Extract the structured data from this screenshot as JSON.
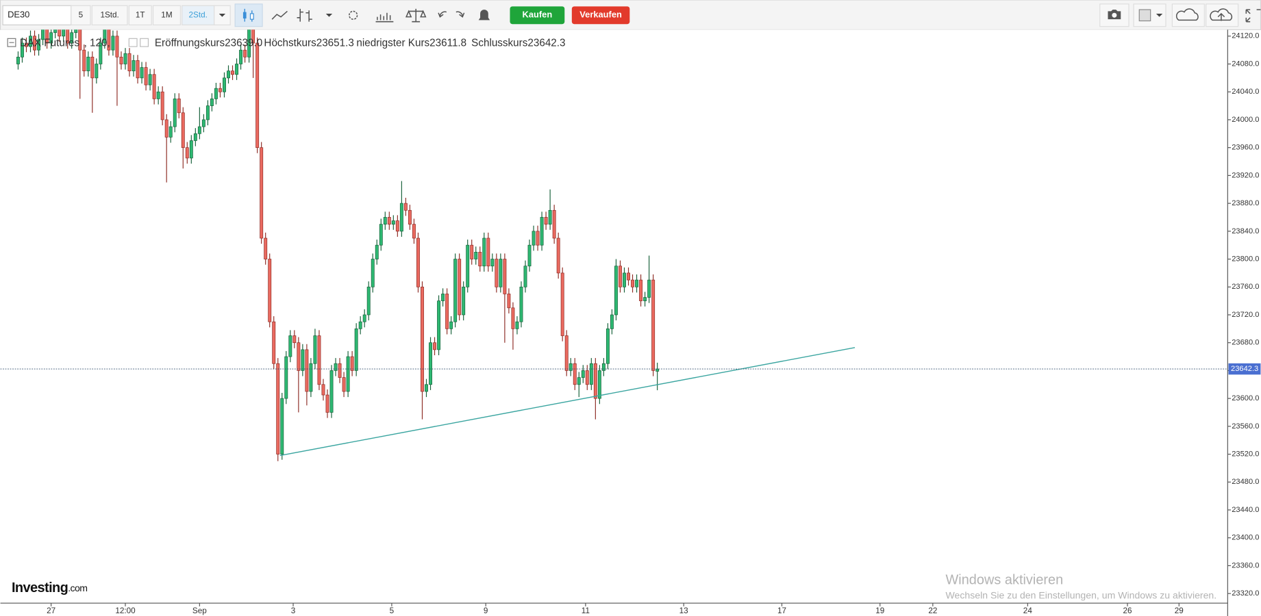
{
  "toolbar": {
    "symbol": "DE30",
    "intervals": [
      "5",
      "1Std.",
      "1T",
      "1M",
      "2Std."
    ],
    "buy": "Kaufen",
    "sell": "Verkaufen"
  },
  "logo": [
    "Investing",
    ".com"
  ],
  "watermark": {
    "title": "Windows aktivieren",
    "text": "Wechseln Sie zu den Einstellungen, um Windows zu aktivieren."
  },
  "chart_data": {
    "type": "candlestick",
    "title": "DAX Futures",
    "subtitle": ", 120,",
    "ohlc_names": [
      "Eröffnungskurs",
      "Höchstkurs",
      "niedrigster Kurs",
      "Schlusskurs"
    ],
    "last_labels": [
      "23639.0",
      "23651.3",
      "23611.8",
      "23642.3"
    ],
    "up_color": "#2eb872",
    "down_color": "#ea6a60",
    "xlim": [
      -4.3,
      293.3
    ],
    "xticks": [
      {
        "value": 8,
        "label": "27"
      },
      {
        "value": 26,
        "label": "12:00"
      },
      {
        "value": 44,
        "label": "Sep"
      },
      {
        "value": 66.7,
        "label": "3"
      },
      {
        "value": 90.6,
        "label": "5"
      },
      {
        "value": 113.4,
        "label": "9"
      },
      {
        "value": 137.6,
        "label": "11"
      },
      {
        "value": 161.4,
        "label": "13"
      },
      {
        "value": 185.2,
        "label": "17"
      },
      {
        "value": 209,
        "label": "19"
      },
      {
        "value": 221.8,
        "label": "22"
      },
      {
        "value": 244.8,
        "label": "24"
      },
      {
        "value": 269,
        "label": "26"
      },
      {
        "value": 281.5,
        "label": "29"
      }
    ],
    "ylim": [
      23306.2,
      24129.2
    ],
    "yticks": [
      {
        "value": 24120,
        "label": "24120.0"
      },
      {
        "value": 24080,
        "label": "24080.0"
      },
      {
        "value": 24040,
        "label": "24040.0"
      },
      {
        "value": 24000,
        "label": "24000.0"
      },
      {
        "value": 23960,
        "label": "23960.0"
      },
      {
        "value": 23920,
        "label": "23920.0"
      },
      {
        "value": 23880,
        "label": "23880.0"
      },
      {
        "value": 23840,
        "label": "23840.0"
      },
      {
        "value": 23800,
        "label": "23800.0"
      },
      {
        "value": 23760,
        "label": "23760.0"
      },
      {
        "value": 23720,
        "label": "23720.0"
      },
      {
        "value": 23680,
        "label": "23680.0"
      },
      {
        "value": 23640,
        "label": "23640.0"
      },
      {
        "value": 23600,
        "label": "23600.0"
      },
      {
        "value": 23560,
        "label": "23560.0"
      },
      {
        "value": 23520,
        "label": "23520.0"
      },
      {
        "value": 23480,
        "label": "23480.0"
      },
      {
        "value": 23440,
        "label": "23440.0"
      },
      {
        "value": 23400,
        "label": "23400.0"
      },
      {
        "value": 23360,
        "label": "23360.0"
      },
      {
        "value": 23320,
        "label": "23320.0"
      }
    ],
    "grid": false,
    "trendline": {
      "color": "#3aa5a0",
      "points": [
        [
          63.5,
          23518
        ],
        [
          202.9,
          23673
        ]
      ]
    },
    "ohlc": [
      [
        24080,
        24098,
        24072,
        24090
      ],
      [
        24090,
        24118,
        24082,
        24110
      ],
      [
        24110,
        24118,
        24097,
        24105
      ],
      [
        24105,
        24128,
        24097,
        24120
      ],
      [
        24120,
        24128,
        24092,
        24100
      ],
      [
        24100,
        24123,
        24092,
        24115
      ],
      [
        24115,
        24138,
        24107,
        24130
      ],
      [
        24130,
        24138,
        24102,
        24110
      ],
      [
        24110,
        24133,
        24102,
        24125
      ],
      [
        24125,
        24148,
        24117,
        24140
      ],
      [
        24140,
        24148,
        24112,
        24120
      ],
      [
        24120,
        24138,
        24112,
        24130
      ],
      [
        24130,
        24138,
        24102,
        24110
      ],
      [
        24110,
        24133,
        24102,
        24125
      ],
      [
        24125,
        24143,
        24117,
        24135
      ],
      [
        24135,
        24143,
        24030,
        24100
      ],
      [
        24100,
        24108,
        24062,
        24070
      ],
      [
        24070,
        24098,
        24062,
        24090
      ],
      [
        24090,
        24098,
        24010,
        24060
      ],
      [
        24060,
        24088,
        24052,
        24080
      ],
      [
        24080,
        24118,
        24072,
        24110
      ],
      [
        24110,
        24138,
        24102,
        24130
      ],
      [
        24130,
        24138,
        24092,
        24100
      ],
      [
        24100,
        24128,
        24092,
        24120
      ],
      [
        24120,
        24128,
        24020,
        24090
      ],
      [
        24090,
        24098,
        24072,
        24080
      ],
      [
        24080,
        24103,
        24072,
        24095
      ],
      [
        24095,
        24103,
        24062,
        24070
      ],
      [
        24070,
        24093,
        24062,
        24085
      ],
      [
        24085,
        24093,
        24052,
        24060
      ],
      [
        24060,
        24083,
        24052,
        24075
      ],
      [
        24075,
        24083,
        24042,
        24050
      ],
      [
        24050,
        24073,
        24042,
        24065
      ],
      [
        24065,
        24073,
        24022,
        24030
      ],
      [
        24030,
        24048,
        24022,
        24040
      ],
      [
        24040,
        24048,
        23992,
        24000
      ],
      [
        24000,
        24008,
        23910,
        23975
      ],
      [
        23975,
        23998,
        23967,
        23990
      ],
      [
        23990,
        24038,
        23982,
        24030
      ],
      [
        24030,
        24038,
        24002,
        24010
      ],
      [
        24010,
        24018,
        23930,
        23960
      ],
      [
        23960,
        23968,
        23937,
        23945
      ],
      [
        23945,
        23978,
        23937,
        23970
      ],
      [
        23970,
        23988,
        23962,
        23980
      ],
      [
        23980,
        24018,
        23972,
        23990
      ],
      [
        23990,
        24008,
        23982,
        24000
      ],
      [
        24000,
        24028,
        23992,
        24020
      ],
      [
        24020,
        24038,
        24012,
        24030
      ],
      [
        24030,
        24053,
        24022,
        24045
      ],
      [
        24045,
        24053,
        24032,
        24040
      ],
      [
        24040,
        24068,
        24032,
        24060
      ],
      [
        24060,
        24078,
        24052,
        24070
      ],
      [
        24070,
        24078,
        24057,
        24065
      ],
      [
        24065,
        24088,
        24057,
        24080
      ],
      [
        24080,
        24108,
        24072,
        24100
      ],
      [
        24100,
        24108,
        24082,
        24090
      ],
      [
        24090,
        24140,
        24082,
        24130
      ],
      [
        24130,
        24140,
        24060,
        24110
      ],
      [
        24110,
        24118,
        23952,
        23960
      ],
      [
        23960,
        23968,
        23822,
        23830
      ],
      [
        23830,
        23838,
        23792,
        23800
      ],
      [
        23800,
        23808,
        23702,
        23710
      ],
      [
        23710,
        23718,
        23642,
        23650
      ],
      [
        23650,
        23658,
        23510,
        23520
      ],
      [
        23520,
        23608,
        23512,
        23600
      ],
      [
        23600,
        23668,
        23592,
        23660
      ],
      [
        23660,
        23698,
        23652,
        23690
      ],
      [
        23690,
        23698,
        23672,
        23680
      ],
      [
        23680,
        23688,
        23580,
        23640
      ],
      [
        23640,
        23678,
        23632,
        23670
      ],
      [
        23670,
        23678,
        23590,
        23610
      ],
      [
        23610,
        23658,
        23602,
        23650
      ],
      [
        23650,
        23700,
        23642,
        23690
      ],
      [
        23690,
        23698,
        23612,
        23620
      ],
      [
        23620,
        23628,
        23597,
        23605
      ],
      [
        23605,
        23613,
        23572,
        23580
      ],
      [
        23580,
        23648,
        23572,
        23640
      ],
      [
        23640,
        23658,
        23632,
        23650
      ],
      [
        23650,
        23658,
        23622,
        23630
      ],
      [
        23630,
        23638,
        23602,
        23610
      ],
      [
        23610,
        23668,
        23602,
        23660
      ],
      [
        23660,
        23668,
        23632,
        23640
      ],
      [
        23640,
        23708,
        23632,
        23700
      ],
      [
        23700,
        23718,
        23692,
        23710
      ],
      [
        23710,
        23728,
        23702,
        23720
      ],
      [
        23720,
        23768,
        23712,
        23760
      ],
      [
        23760,
        23808,
        23752,
        23800
      ],
      [
        23800,
        23828,
        23792,
        23820
      ],
      [
        23820,
        23858,
        23812,
        23850
      ],
      [
        23850,
        23868,
        23842,
        23860
      ],
      [
        23860,
        23868,
        23842,
        23850
      ],
      [
        23850,
        23863,
        23842,
        23855
      ],
      [
        23855,
        23863,
        23832,
        23840
      ],
      [
        23840,
        23912,
        23832,
        23880
      ],
      [
        23880,
        23888,
        23862,
        23870
      ],
      [
        23870,
        23878,
        23842,
        23850
      ],
      [
        23850,
        23858,
        23822,
        23830
      ],
      [
        23830,
        23838,
        23752,
        23760
      ],
      [
        23760,
        23768,
        23570,
        23610
      ],
      [
        23610,
        23628,
        23602,
        23620
      ],
      [
        23620,
        23688,
        23612,
        23680
      ],
      [
        23680,
        23688,
        23662,
        23670
      ],
      [
        23670,
        23748,
        23662,
        23740
      ],
      [
        23740,
        23758,
        23732,
        23750
      ],
      [
        23750,
        23758,
        23692,
        23700
      ],
      [
        23700,
        23718,
        23692,
        23710
      ],
      [
        23710,
        23808,
        23702,
        23800
      ],
      [
        23800,
        23808,
        23712,
        23720
      ],
      [
        23720,
        23768,
        23712,
        23760
      ],
      [
        23760,
        23828,
        23752,
        23820
      ],
      [
        23820,
        23828,
        23792,
        23800
      ],
      [
        23800,
        23818,
        23792,
        23810
      ],
      [
        23810,
        23818,
        23782,
        23790
      ],
      [
        23790,
        23838,
        23782,
        23830
      ],
      [
        23830,
        23838,
        23782,
        23790
      ],
      [
        23790,
        23808,
        23782,
        23800
      ],
      [
        23800,
        23808,
        23752,
        23760
      ],
      [
        23760,
        23808,
        23752,
        23800
      ],
      [
        23800,
        23808,
        23680,
        23750
      ],
      [
        23750,
        23758,
        23722,
        23730
      ],
      [
        23730,
        23738,
        23670,
        23700
      ],
      [
        23700,
        23718,
        23692,
        23710
      ],
      [
        23710,
        23768,
        23702,
        23760
      ],
      [
        23760,
        23798,
        23752,
        23790
      ],
      [
        23790,
        23828,
        23782,
        23820
      ],
      [
        23820,
        23848,
        23812,
        23840
      ],
      [
        23840,
        23848,
        23812,
        23820
      ],
      [
        23820,
        23868,
        23812,
        23860
      ],
      [
        23860,
        23868,
        23842,
        23850
      ],
      [
        23850,
        23900,
        23842,
        23870
      ],
      [
        23870,
        23878,
        23822,
        23830
      ],
      [
        23830,
        23838,
        23772,
        23780
      ],
      [
        23780,
        23788,
        23682,
        23690
      ],
      [
        23690,
        23698,
        23632,
        23640
      ],
      [
        23640,
        23658,
        23632,
        23650
      ],
      [
        23650,
        23658,
        23612,
        23620
      ],
      [
        23620,
        23638,
        23602,
        23630
      ],
      [
        23630,
        23648,
        23622,
        23640
      ],
      [
        23640,
        23648,
        23612,
        23620
      ],
      [
        23620,
        23658,
        23612,
        23650
      ],
      [
        23650,
        23658,
        23570,
        23600
      ],
      [
        23600,
        23648,
        23592,
        23640
      ],
      [
        23640,
        23658,
        23632,
        23650
      ],
      [
        23650,
        23708,
        23642,
        23700
      ],
      [
        23700,
        23728,
        23692,
        23720
      ],
      [
        23720,
        23800,
        23712,
        23790
      ],
      [
        23790,
        23798,
        23752,
        23760
      ],
      [
        23760,
        23788,
        23752,
        23780
      ],
      [
        23780,
        23788,
        23762,
        23770
      ],
      [
        23770,
        23778,
        23752,
        23760
      ],
      [
        23760,
        23778,
        23752,
        23770
      ],
      [
        23770,
        23778,
        23732,
        23740
      ],
      [
        23740,
        23753,
        23732,
        23745
      ],
      [
        23745,
        23805,
        23737,
        23770
      ],
      [
        23770,
        23778,
        23632,
        23640
      ],
      [
        23639.0,
        23651.3,
        23611.8,
        23642.3
      ]
    ]
  }
}
